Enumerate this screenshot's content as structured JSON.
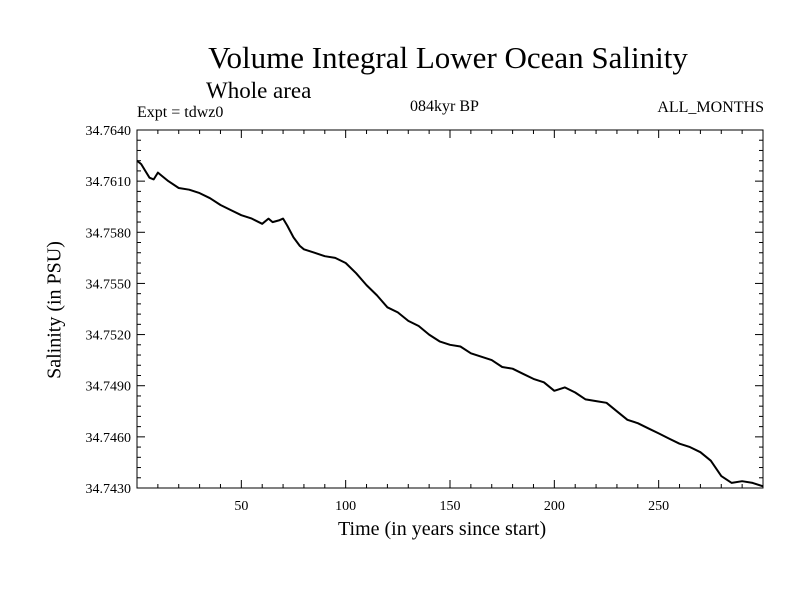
{
  "header": {
    "title": "Volume Integral Lower Ocean Salinity",
    "subtitle": "Whole area",
    "experiment": "Expt = tdwz0",
    "period": "084kyr BP",
    "months": "ALL_MONTHS"
  },
  "chart_data": {
    "type": "line",
    "title": "Volume Integral Lower Ocean Salinity",
    "subtitle": "Whole area",
    "xlabel": "Time (in years since start)",
    "ylabel": "Salinity (in PSU)",
    "xlim": [
      0,
      300
    ],
    "ylim": [
      34.743,
      34.764
    ],
    "x_ticks": [
      50,
      100,
      150,
      200,
      250
    ],
    "y_ticks": [
      34.743,
      34.746,
      34.749,
      34.752,
      34.755,
      34.758,
      34.761,
      34.764
    ],
    "x_tick_labels": [
      "50",
      "100",
      "150",
      "200",
      "250"
    ],
    "y_tick_labels": [
      "34.7430",
      "34.7460",
      "34.7490",
      "34.7520",
      "34.7550",
      "34.7580",
      "34.7610",
      "34.7640"
    ],
    "grid": false,
    "series": [
      {
        "color": "#000000",
        "x": [
          0,
          2,
          4,
          6,
          8,
          10,
          12,
          15,
          20,
          25,
          30,
          35,
          40,
          45,
          50,
          55,
          60,
          63,
          65,
          68,
          70,
          72,
          75,
          78,
          80,
          85,
          90,
          95,
          100,
          105,
          110,
          115,
          120,
          125,
          130,
          135,
          140,
          145,
          150,
          155,
          160,
          165,
          170,
          175,
          180,
          185,
          190,
          195,
          200,
          205,
          210,
          215,
          220,
          225,
          230,
          235,
          240,
          245,
          250,
          255,
          260,
          265,
          270,
          275,
          280,
          285,
          290,
          295,
          300
        ],
        "y": [
          34.7622,
          34.762,
          34.7616,
          34.7612,
          34.7611,
          34.7615,
          34.7613,
          34.761,
          34.7606,
          34.7605,
          34.7603,
          34.76,
          34.7596,
          34.7593,
          34.759,
          34.7588,
          34.7585,
          34.7588,
          34.7586,
          34.7587,
          34.7588,
          34.7584,
          34.7577,
          34.7572,
          34.757,
          34.7568,
          34.7566,
          34.7565,
          34.7562,
          34.7556,
          34.7549,
          34.7543,
          34.7536,
          34.7533,
          34.7528,
          34.7525,
          34.752,
          34.7516,
          34.7514,
          34.7513,
          34.7509,
          34.7507,
          34.7505,
          34.7501,
          34.75,
          34.7497,
          34.7494,
          34.7492,
          34.7487,
          34.7489,
          34.7486,
          34.7482,
          34.7481,
          34.748,
          34.7475,
          34.747,
          34.7468,
          34.7465,
          34.7462,
          34.7459,
          34.7456,
          34.7454,
          34.7451,
          34.7446,
          34.7437,
          34.7433,
          34.7434,
          34.7433,
          34.7431
        ]
      }
    ]
  }
}
